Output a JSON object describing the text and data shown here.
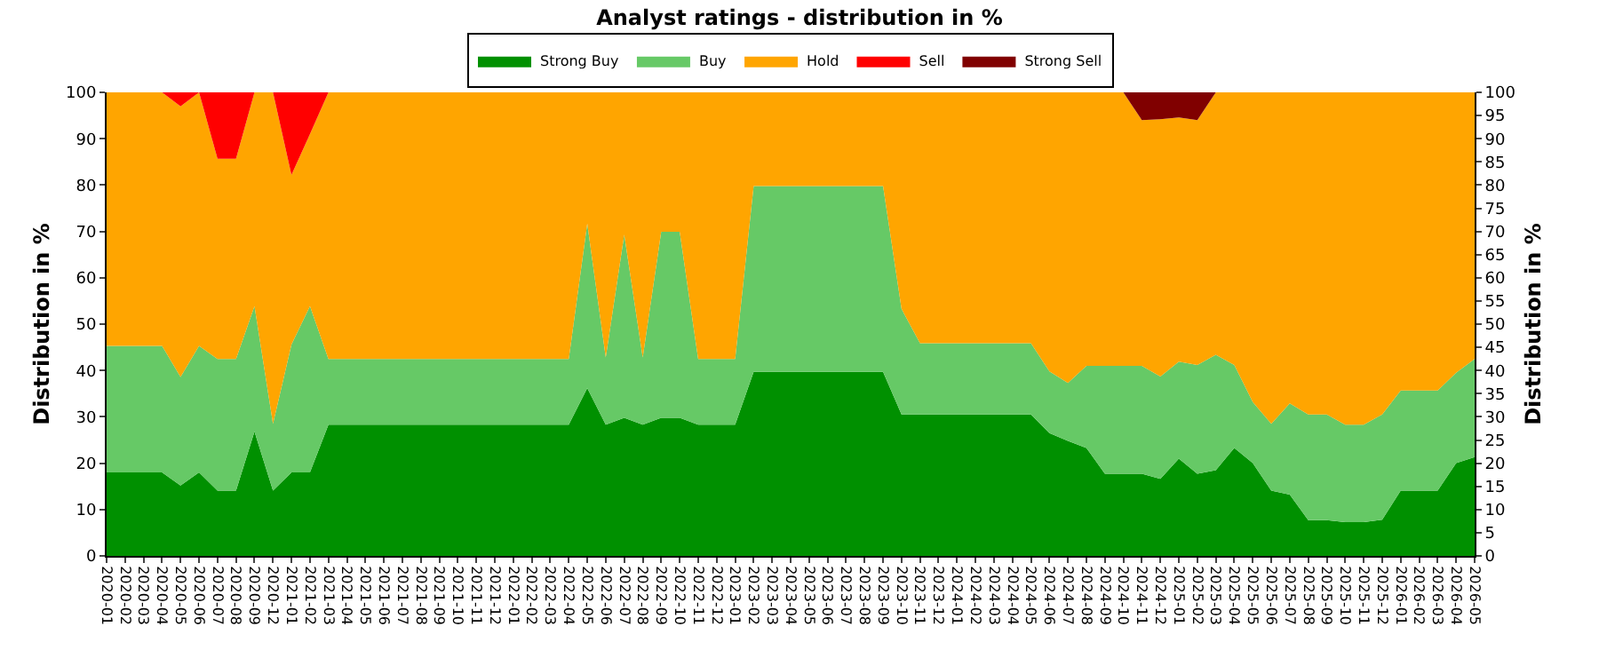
{
  "chart_data": {
    "type": "area",
    "stacked": true,
    "title": "Analyst ratings - distribution in %",
    "ylabel": "Distribution in %",
    "y2label": "Distribution in %",
    "categories": [
      "2020-01",
      "2020-02",
      "2020-03",
      "2020-04",
      "2020-05",
      "2020-06",
      "2020-07",
      "2020-08",
      "2020-09",
      "2020-12",
      "2021-01",
      "2021-02",
      "2021-03",
      "2021-04",
      "2021-05",
      "2021-06",
      "2021-07",
      "2021-08",
      "2021-09",
      "2021-10",
      "2021-11",
      "2021-12",
      "2022-01",
      "2022-02",
      "2022-03",
      "2022-04",
      "2022-05",
      "2022-06",
      "2022-07",
      "2022-08",
      "2022-09",
      "2022-10",
      "2022-11",
      "2022-12",
      "2023-01",
      "2023-02",
      "2023-03",
      "2023-04",
      "2023-05",
      "2023-06",
      "2023-07",
      "2023-08",
      "2023-09",
      "2023-10",
      "2023-11",
      "2023-12",
      "2024-01",
      "2024-02",
      "2024-03",
      "2024-04",
      "2024-05",
      "2024-06",
      "2024-07",
      "2024-08",
      "2024-09",
      "2024-10",
      "2024-11",
      "2024-12",
      "2025-01",
      "2025-02",
      "2025-03",
      "2025-04",
      "2025-05",
      "2025-06",
      "2025-07",
      "2025-08",
      "2025-09",
      "2025-10",
      "2025-11",
      "2025-12",
      "2026-01",
      "2026-02",
      "2026-03",
      "2026-04",
      "2026-05"
    ],
    "series": [
      {
        "name": "Strong Buy",
        "color": "#009000",
        "values": [
          18,
          18,
          18,
          18,
          15.2,
          18,
          14.1,
          14.1,
          26.8,
          14.1,
          18,
          18,
          28.3,
          28.3,
          28.3,
          28.3,
          28.3,
          28.3,
          28.3,
          28.3,
          28.3,
          28.3,
          28.3,
          28.3,
          28.3,
          28.3,
          36.2,
          28.3,
          29.8,
          28.3,
          29.8,
          29.8,
          28.3,
          28.3,
          28.3,
          39.7,
          39.7,
          39.7,
          39.7,
          39.7,
          39.7,
          39.7,
          39.7,
          30.5,
          30.5,
          30.5,
          30.5,
          30.5,
          30.5,
          30.5,
          30.5,
          26.5,
          24.8,
          23.3,
          17.7,
          17.7,
          17.7,
          16.6,
          21,
          17.7,
          18.5,
          23.3,
          20,
          14.1,
          13.2,
          7.7,
          7.7,
          7.3,
          7.3,
          7.8,
          14.1,
          14.1,
          14.1,
          20,
          21.3
        ]
      },
      {
        "name": "Buy",
        "color": "#66c966",
        "values": [
          27.3,
          27.3,
          27.3,
          27.3,
          23.4,
          27.3,
          28.4,
          28.4,
          27.1,
          14.4,
          27.6,
          35.9,
          14.2,
          14.2,
          14.2,
          14.2,
          14.2,
          14.2,
          14.2,
          14.2,
          14.2,
          14.2,
          14.2,
          14.2,
          14.2,
          14.2,
          35.5,
          14.5,
          39.5,
          14.5,
          40.1,
          40.1,
          14.2,
          14.2,
          14.2,
          40.1,
          40.1,
          40.1,
          40.1,
          40.1,
          40.1,
          40.1,
          40.1,
          22.8,
          15.4,
          15.4,
          15.4,
          15.4,
          15.4,
          15.4,
          15.4,
          13.3,
          12.5,
          17.7,
          23.3,
          23.3,
          23.3,
          22.1,
          20.9,
          23.5,
          24.9,
          17.9,
          13.2,
          14.4,
          19.7,
          22.8,
          22.8,
          21,
          21,
          22.7,
          21.6,
          21.6,
          21.6,
          19.5,
          21.2
        ]
      },
      {
        "name": "Hold",
        "color": "#ffa500",
        "values": [
          54.7,
          54.7,
          54.7,
          54.7,
          58.4,
          54.7,
          43.2,
          43.2,
          46.1,
          71.5,
          36.6,
          37.1,
          57.5,
          57.5,
          57.5,
          57.5,
          57.5,
          57.5,
          57.5,
          57.5,
          57.5,
          57.5,
          57.5,
          57.5,
          57.5,
          57.5,
          28.3,
          57.2,
          30.7,
          57.2,
          30.1,
          30.1,
          57.5,
          57.5,
          57.5,
          20.2,
          20.2,
          20.2,
          20.2,
          20.2,
          20.2,
          20.2,
          20.2,
          46.7,
          54.1,
          54.1,
          54.1,
          54.1,
          54.1,
          54.1,
          54.1,
          60.2,
          62.7,
          59,
          59,
          59,
          53,
          55.5,
          52.7,
          52.8,
          56.6,
          58.8,
          66.8,
          71.5,
          67.1,
          69.5,
          69.5,
          71.7,
          71.7,
          69.5,
          64.3,
          64.3,
          64.3,
          60.5,
          57.5
        ]
      },
      {
        "name": "Sell",
        "color": "#ff0000",
        "values": [
          0,
          0,
          0,
          0,
          3,
          0,
          14.3,
          14.3,
          0,
          0,
          17.8,
          9,
          0,
          0,
          0,
          0,
          0,
          0,
          0,
          0,
          0,
          0,
          0,
          0,
          0,
          0,
          0,
          0,
          0,
          0,
          0,
          0,
          0,
          0,
          0,
          0,
          0,
          0,
          0,
          0,
          0,
          0,
          0,
          0,
          0,
          0,
          0,
          0,
          0,
          0,
          0,
          0,
          0,
          0,
          0,
          0,
          0,
          0,
          0,
          0,
          0,
          0,
          0,
          0,
          0,
          0,
          0,
          0,
          0,
          0,
          0,
          0,
          0,
          0,
          0
        ]
      },
      {
        "name": "Strong Sell",
        "color": "#800000",
        "values": [
          0,
          0,
          0,
          0,
          0,
          0,
          0,
          0,
          0,
          0,
          0,
          0,
          0,
          0,
          0,
          0,
          0,
          0,
          0,
          0,
          0,
          0,
          0,
          0,
          0,
          0,
          0,
          0,
          0,
          0,
          0,
          0,
          0,
          0,
          0,
          0,
          0,
          0,
          0,
          0,
          0,
          0,
          0,
          0,
          0,
          0,
          0,
          0,
          0,
          0,
          0,
          0,
          0,
          0,
          0,
          0,
          6,
          5.8,
          5.4,
          6,
          0,
          0,
          0,
          0,
          0,
          0,
          0,
          0,
          0,
          0,
          0,
          0,
          0,
          0,
          0
        ]
      }
    ],
    "ylim": [
      0,
      100
    ],
    "yticks": [
      0,
      10,
      20,
      30,
      40,
      50,
      60,
      70,
      80,
      90,
      100
    ],
    "y2lim": [
      0,
      100
    ],
    "y2ticks": [
      0,
      5,
      10,
      15,
      20,
      25,
      30,
      35,
      40,
      45,
      50,
      55,
      60,
      65,
      70,
      75,
      80,
      85,
      90,
      95,
      100
    ],
    "grid": "y",
    "legend": "top"
  }
}
